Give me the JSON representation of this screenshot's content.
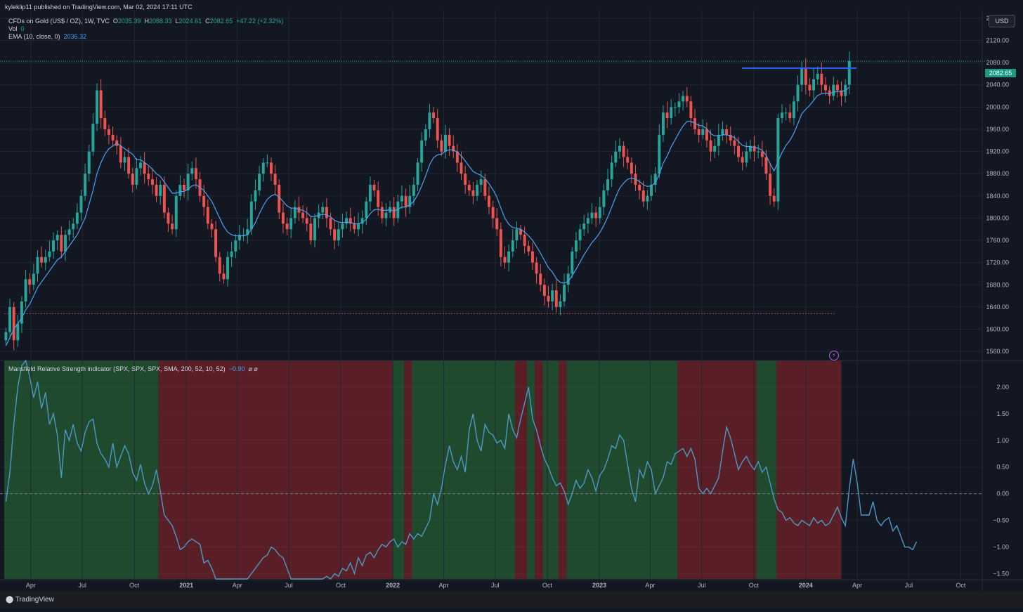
{
  "header": {
    "published": "kyleklip11 published on TradingView.com, Mar 02, 2024 17:11 UTC",
    "symbol_line": "CFDs on Gold (US$ / OZ), 1W, TVC",
    "open_label": "O",
    "open": "2035.39",
    "high_label": "H",
    "high": "2088.33",
    "low_label": "L",
    "low": "2024.61",
    "close_label": "C",
    "close": "2082.65",
    "change": "+47.22 (+2.32%)",
    "vol_label": "Vol",
    "vol": "0",
    "ema_label": "EMA (10, close, 0)",
    "ema_value": "2036.32",
    "currency": "USD",
    "last_price": "2082.65"
  },
  "indicator": {
    "label": "Mansfield Relative Strength indicator (SPX, SPX, SPX, SMA, 200, 52, 10, 52)",
    "value": "−0.90",
    "flags": "⌀ ⌀"
  },
  "footer": {
    "brand": "TradingView"
  },
  "colors": {
    "bull": "#26a69a",
    "bear": "#ef5350",
    "ema": "#4aa3f0",
    "rs_line": "#4e98c4",
    "zone_pos": "#1f4a2e",
    "zone_neg": "#5a1f26",
    "bg": "#131722",
    "grid": "#232734",
    "axis_text": "#b2b5be"
  },
  "chart_data": [
    {
      "type": "candlestick",
      "title": "CFDs on Gold (US$ / OZ), 1W, TVC",
      "ylim": [
        1545,
        2175
      ],
      "y_ticks": [
        1560,
        1600,
        1640,
        1680,
        1720,
        1760,
        1800,
        1840,
        1880,
        1920,
        1960,
        2000,
        2040,
        2080,
        2120,
        2160
      ],
      "x_ticks": [
        "Apr",
        "Jul",
        "Oct",
        "2021",
        "Apr",
        "Jul",
        "Oct",
        "2022",
        "Apr",
        "Jul",
        "Oct",
        "2023",
        "Apr",
        "Jul",
        "Oct",
        "2024",
        "Apr",
        "Jul",
        "Oct"
      ],
      "x_tick_dates": [
        "2020-04-01",
        "2020-07-01",
        "2020-10-01",
        "2021-01-01",
        "2021-04-01",
        "2021-07-01",
        "2021-10-01",
        "2022-01-01",
        "2022-04-01",
        "2022-07-01",
        "2022-10-01",
        "2023-01-01",
        "2023-04-01",
        "2023-07-01",
        "2023-10-01",
        "2024-01-01",
        "2024-04-01",
        "2024-07-01",
        "2024-10-01"
      ],
      "x_range": [
        "2020-02-14",
        "2024-11-08"
      ],
      "week_start": "2020-02-17",
      "close": [
        1595,
        1640,
        1580,
        1610,
        1650,
        1690,
        1680,
        1700,
        1730,
        1720,
        1730,
        1740,
        1760,
        1770,
        1740,
        1770,
        1780,
        1790,
        1810,
        1840,
        1880,
        1920,
        1970,
        2030,
        1980,
        1960,
        1950,
        1940,
        1930,
        1900,
        1910,
        1880,
        1860,
        1890,
        1900,
        1880,
        1870,
        1860,
        1840,
        1860,
        1810,
        1790,
        1780,
        1840,
        1860,
        1850,
        1880,
        1890,
        1870,
        1840,
        1820,
        1790,
        1780,
        1730,
        1700,
        1690,
        1730,
        1740,
        1760,
        1770,
        1770,
        1780,
        1830,
        1850,
        1880,
        1900,
        1900,
        1880,
        1860,
        1810,
        1790,
        1780,
        1800,
        1820,
        1810,
        1800,
        1790,
        1760,
        1800,
        1810,
        1820,
        1800,
        1780,
        1760,
        1780,
        1790,
        1800,
        1790,
        1780,
        1790,
        1800,
        1830,
        1860,
        1850,
        1820,
        1800,
        1810,
        1820,
        1800,
        1830,
        1840,
        1820,
        1840,
        1860,
        1900,
        1940,
        1960,
        1990,
        1980,
        1940,
        1920,
        1950,
        1930,
        1920,
        1900,
        1880,
        1860,
        1850,
        1840,
        1860,
        1870,
        1840,
        1820,
        1800,
        1780,
        1730,
        1720,
        1740,
        1760,
        1780,
        1770,
        1750,
        1740,
        1720,
        1700,
        1680,
        1660,
        1650,
        1670,
        1640,
        1650,
        1680,
        1700,
        1740,
        1760,
        1780,
        1790,
        1800,
        1810,
        1800,
        1820,
        1850,
        1870,
        1900,
        1920,
        1930,
        1910,
        1900,
        1880,
        1860,
        1850,
        1830,
        1840,
        1860,
        1880,
        1950,
        1990,
        1980,
        2000,
        2000,
        2010,
        2020,
        2010,
        1980,
        1960,
        1950,
        1960,
        1940,
        1920,
        1930,
        1950,
        1960,
        1950,
        1940,
        1930,
        1910,
        1900,
        1920,
        1930,
        1920,
        1920,
        1910,
        1880,
        1840,
        1830,
        1980,
        1990,
        1990,
        1980,
        2010,
        2040,
        2070,
        2040,
        2030,
        2050,
        2060,
        2040,
        2030,
        2020,
        2040,
        2030,
        2020,
        2040,
        2083
      ],
      "ema_10": [
        1570,
        1585,
        1600,
        1610,
        1620,
        1635,
        1645,
        1660,
        1675,
        1685,
        1695,
        1705,
        1715,
        1725,
        1730,
        1740,
        1750,
        1760,
        1770,
        1785,
        1800,
        1825,
        1850,
        1880,
        1900,
        1915,
        1925,
        1930,
        1935,
        1930,
        1925,
        1920,
        1915,
        1905,
        1905,
        1900,
        1895,
        1888,
        1880,
        1875,
        1865,
        1855,
        1845,
        1845,
        1848,
        1848,
        1852,
        1858,
        1860,
        1855,
        1850,
        1840,
        1830,
        1815,
        1800,
        1785,
        1775,
        1770,
        1768,
        1768,
        1768,
        1770,
        1780,
        1792,
        1808,
        1822,
        1834,
        1840,
        1843,
        1838,
        1830,
        1822,
        1818,
        1818,
        1816,
        1814,
        1810,
        1803,
        1803,
        1805,
        1807,
        1806,
        1802,
        1796,
        1793,
        1792,
        1793,
        1792,
        1790,
        1790,
        1792,
        1798,
        1808,
        1815,
        1816,
        1814,
        1814,
        1815,
        1813,
        1816,
        1820,
        1820,
        1824,
        1830,
        1842,
        1858,
        1876,
        1896,
        1909,
        1914,
        1915,
        1921,
        1923,
        1923,
        1919,
        1912,
        1903,
        1893,
        1884,
        1880,
        1877,
        1871,
        1862,
        1851,
        1838,
        1818,
        1800,
        1789,
        1783,
        1782,
        1780,
        1775,
        1768,
        1760,
        1749,
        1737,
        1724,
        1711,
        1703,
        1691,
        1684,
        1683,
        1686,
        1696,
        1708,
        1721,
        1734,
        1745,
        1756,
        1764,
        1774,
        1787,
        1802,
        1820,
        1838,
        1854,
        1863,
        1870,
        1872,
        1870,
        1866,
        1860,
        1857,
        1858,
        1864,
        1879,
        1899,
        1912,
        1928,
        1941,
        1954,
        1966,
        1974,
        1974,
        1971,
        1967,
        1966,
        1961,
        1952,
        1948,
        1948,
        1950,
        1950,
        1948,
        1945,
        1938,
        1931,
        1929,
        1929,
        1927,
        1926,
        1922,
        1913,
        1898,
        1885,
        1902,
        1918,
        1931,
        1940,
        1953,
        1970,
        1988,
        1996,
        2003,
        2012,
        2021,
        2024,
        2025,
        2024,
        2027,
        2028,
        2028,
        2030,
        2036
      ],
      "resistance_level": 2070,
      "support_level": 1628,
      "last": 2082.65
    },
    {
      "type": "line",
      "title": "Mansfield Relative Strength indicator (SPX, SPX, SPX, SMA, 200, 52, 10, 52)",
      "ylim": [
        -1.6,
        2.5
      ],
      "y_ticks": [
        2.0,
        1.5,
        1.0,
        0.5,
        0.0,
        -0.5,
        -1.0,
        -1.5
      ],
      "zero_line": true,
      "values": [
        -0.15,
        0.4,
        1.3,
        2.0,
        2.4,
        2.5,
        2.2,
        1.8,
        2.1,
        1.6,
        1.9,
        1.3,
        1.5,
        1.1,
        0.3,
        1.2,
        1.0,
        1.3,
        0.95,
        0.8,
        1.15,
        1.35,
        1.4,
        0.95,
        0.75,
        0.65,
        0.5,
        0.95,
        0.5,
        0.7,
        0.9,
        0.75,
        0.4,
        0.25,
        0.55,
        0.2,
        0.0,
        0.15,
        0.45,
        0.05,
        -0.4,
        -0.5,
        -0.6,
        -0.8,
        -1.05,
        -1.0,
        -0.9,
        -0.85,
        -0.9,
        -0.95,
        -1.3,
        -1.25,
        -1.4,
        -1.6,
        -1.7,
        -1.8,
        -1.9,
        -1.85,
        -1.75,
        -1.8,
        -1.7,
        -1.65,
        -1.5,
        -1.4,
        -1.3,
        -1.2,
        -1.15,
        -1.0,
        -1.05,
        -1.15,
        -1.2,
        -1.4,
        -1.6,
        -1.7,
        -1.8,
        -1.75,
        -1.9,
        -1.8,
        -1.65,
        -1.6,
        -1.7,
        -1.55,
        -1.7,
        -1.5,
        -1.55,
        -1.4,
        -1.45,
        -1.3,
        -1.5,
        -1.2,
        -1.35,
        -1.15,
        -1.1,
        -1.2,
        -1.05,
        -0.95,
        -1.0,
        -0.9,
        -0.85,
        -1.0,
        -0.9,
        -0.95,
        -0.75,
        -0.85,
        -0.75,
        -0.8,
        -0.65,
        -0.5,
        0.0,
        -0.2,
        0.1,
        0.55,
        0.9,
        0.6,
        0.45,
        0.7,
        0.4,
        1.2,
        1.5,
        1.0,
        0.8,
        1.3,
        1.15,
        1.1,
        0.95,
        1.0,
        0.85,
        1.5,
        1.2,
        1.05,
        1.4,
        1.7,
        2.0,
        1.4,
        1.2,
        0.9,
        0.65,
        0.5,
        0.3,
        0.15,
        0.2,
        0.05,
        -0.2,
        0.0,
        0.25,
        0.1,
        0.2,
        0.45,
        0.3,
        0.05,
        0.35,
        0.45,
        0.65,
        0.9,
        0.85,
        1.1,
        1.0,
        0.55,
        0.1,
        -0.15,
        0.45,
        0.3,
        0.6,
        0.45,
        0.0,
        0.15,
        0.3,
        0.6,
        0.55,
        0.75,
        0.8,
        0.85,
        0.7,
        0.85,
        0.65,
        0.1,
        0.0,
        0.1,
        0.0,
        0.15,
        0.3,
        0.8,
        1.25,
        1.05,
        0.75,
        0.45,
        0.6,
        0.7,
        0.55,
        0.45,
        0.6,
        0.4,
        0.5,
        0.2,
        -0.1,
        -0.3,
        -0.35,
        -0.5,
        -0.45,
        -0.55,
        -0.6,
        -0.5,
        -0.55,
        -0.6,
        -0.45,
        -0.55,
        -0.5,
        -0.6,
        -0.55,
        -0.4,
        -0.25,
        -0.45,
        -0.6,
        0.1,
        0.65,
        0.2,
        -0.4,
        -0.4,
        -0.4,
        -0.15,
        -0.5,
        -0.6,
        -0.5,
        -0.45,
        -0.7,
        -0.6,
        -0.8,
        -1.0,
        -1.0,
        -1.05,
        -0.9
      ],
      "last": -0.9,
      "zones": [
        {
          "from": "2020-02-14",
          "to": "2020-11-13",
          "sign": "positive"
        },
        {
          "from": "2020-11-13",
          "to": "2021-12-31",
          "sign": "negative"
        },
        {
          "from": "2021-12-31",
          "to": "2022-01-21",
          "sign": "positive"
        },
        {
          "from": "2022-01-21",
          "to": "2022-02-04",
          "sign": "negative"
        },
        {
          "from": "2022-02-04",
          "to": "2022-08-05",
          "sign": "positive"
        },
        {
          "from": "2022-08-05",
          "to": "2022-08-26",
          "sign": "negative"
        },
        {
          "from": "2022-08-26",
          "to": "2022-09-09",
          "sign": "positive"
        },
        {
          "from": "2022-09-09",
          "to": "2022-09-23",
          "sign": "negative"
        },
        {
          "from": "2022-09-23",
          "to": "2022-10-21",
          "sign": "positive"
        },
        {
          "from": "2022-10-21",
          "to": "2022-11-04",
          "sign": "negative"
        },
        {
          "from": "2022-11-04",
          "to": "2023-05-19",
          "sign": "positive"
        },
        {
          "from": "2023-05-19",
          "to": "2023-10-06",
          "sign": "negative"
        },
        {
          "from": "2023-10-06",
          "to": "2023-11-10",
          "sign": "positive"
        },
        {
          "from": "2023-11-10",
          "to": "2024-03-04",
          "sign": "negative"
        }
      ]
    }
  ]
}
